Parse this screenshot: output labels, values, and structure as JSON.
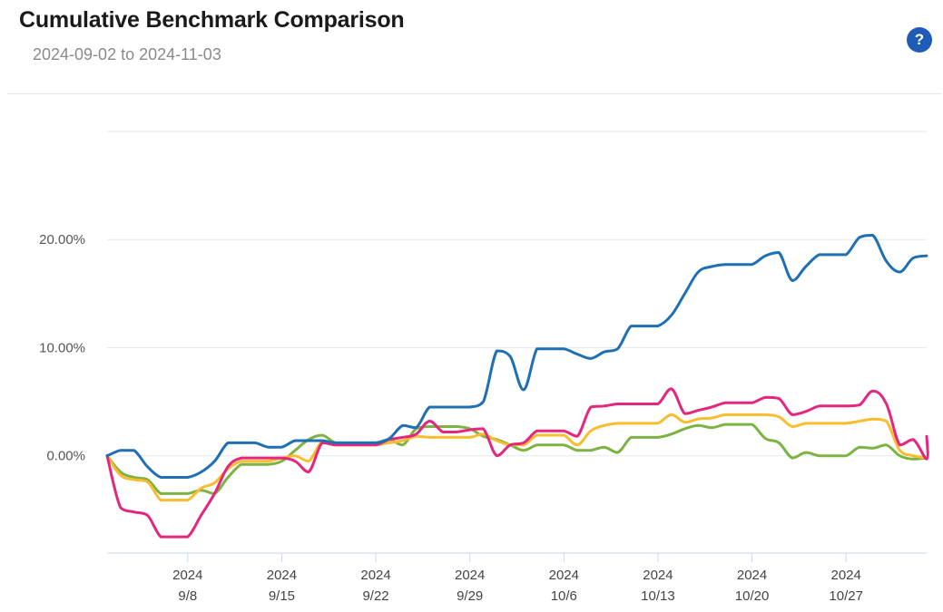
{
  "header": {
    "title": "Cumulative Benchmark Comparison",
    "subtitle": "2024-09-02 to 2024-11-03",
    "help_label": "?",
    "help_icon": "question-circle-icon"
  },
  "colors": {
    "blue": "#1f6fb4",
    "pink": "#e4267f",
    "yellow": "#f9bd2e",
    "green": "#7cb342",
    "grid": "#e6e9ed",
    "axis": "#c9d6ec"
  },
  "chart_data": {
    "type": "line",
    "title": "Cumulative Benchmark Comparison",
    "subtitle": "2024-09-02 to 2024-11-03",
    "xlabel": "",
    "ylabel": "",
    "x_range": [
      "2024-09-02",
      "2024-11-02"
    ],
    "ylim": [
      -9,
      30
    ],
    "y_ticks": [
      {
        "value": 0,
        "label": "0.00%"
      },
      {
        "value": 10,
        "label": "10.00%"
      },
      {
        "value": 20,
        "label": "20.00%"
      }
    ],
    "x_ticks": [
      {
        "date": "2024-09-08",
        "year": "2024",
        "label": "9/8"
      },
      {
        "date": "2024-09-15",
        "year": "2024",
        "label": "9/15"
      },
      {
        "date": "2024-09-22",
        "year": "2024",
        "label": "9/22"
      },
      {
        "date": "2024-09-29",
        "year": "2024",
        "label": "9/29"
      },
      {
        "date": "2024-10-06",
        "year": "2024",
        "label": "10/6"
      },
      {
        "date": "2024-10-13",
        "year": "2024",
        "label": "10/13"
      },
      {
        "date": "2024-10-20",
        "year": "2024",
        "label": "10/20"
      },
      {
        "date": "2024-10-27",
        "year": "2024",
        "label": "10/27"
      }
    ],
    "grid": true,
    "legend": "none",
    "series": [
      {
        "color": "#1f6fb4",
        "points": [
          [
            "2024-09-02",
            0.0
          ],
          [
            "2024-09-03",
            0.5
          ],
          [
            "2024-09-04",
            0.5
          ],
          [
            "2024-09-05",
            -1.0
          ],
          [
            "2024-09-06",
            -2.0
          ],
          [
            "2024-09-07",
            -2.0
          ],
          [
            "2024-09-08",
            -2.0
          ],
          [
            "2024-09-09",
            -1.5
          ],
          [
            "2024-09-10",
            -0.5
          ],
          [
            "2024-09-11",
            1.2
          ],
          [
            "2024-09-12",
            1.2
          ],
          [
            "2024-09-13",
            1.2
          ],
          [
            "2024-09-14",
            0.8
          ],
          [
            "2024-09-15",
            0.8
          ],
          [
            "2024-09-16",
            1.4
          ],
          [
            "2024-09-17",
            1.4
          ],
          [
            "2024-09-18",
            1.4
          ],
          [
            "2024-09-19",
            1.2
          ],
          [
            "2024-09-20",
            1.2
          ],
          [
            "2024-09-21",
            1.2
          ],
          [
            "2024-09-22",
            1.2
          ],
          [
            "2024-09-23",
            1.6
          ],
          [
            "2024-09-24",
            2.8
          ],
          [
            "2024-09-25",
            2.6
          ],
          [
            "2024-09-26",
            4.5
          ],
          [
            "2024-09-27",
            4.5
          ],
          [
            "2024-09-28",
            4.5
          ],
          [
            "2024-09-29",
            4.5
          ],
          [
            "2024-09-30",
            5.0
          ],
          [
            "2024-10-01",
            9.7
          ],
          [
            "2024-10-02",
            9.2
          ],
          [
            "2024-10-03",
            6.1
          ],
          [
            "2024-10-04",
            9.9
          ],
          [
            "2024-10-05",
            9.9
          ],
          [
            "2024-10-06",
            9.9
          ],
          [
            "2024-10-07",
            9.4
          ],
          [
            "2024-10-08",
            9.0
          ],
          [
            "2024-10-09",
            9.6
          ],
          [
            "2024-10-10",
            9.9
          ],
          [
            "2024-10-11",
            12.0
          ],
          [
            "2024-10-12",
            12.0
          ],
          [
            "2024-10-13",
            12.0
          ],
          [
            "2024-10-14",
            13.0
          ],
          [
            "2024-10-15",
            15.0
          ],
          [
            "2024-10-16",
            17.0
          ],
          [
            "2024-10-17",
            17.5
          ],
          [
            "2024-10-18",
            17.7
          ],
          [
            "2024-10-19",
            17.7
          ],
          [
            "2024-10-20",
            17.7
          ],
          [
            "2024-10-21",
            18.5
          ],
          [
            "2024-10-22",
            18.8
          ],
          [
            "2024-10-23",
            16.2
          ],
          [
            "2024-10-24",
            17.5
          ],
          [
            "2024-10-25",
            18.6
          ],
          [
            "2024-10-26",
            18.6
          ],
          [
            "2024-10-27",
            18.6
          ],
          [
            "2024-10-28",
            20.2
          ],
          [
            "2024-10-29",
            20.4
          ],
          [
            "2024-10-30",
            18.0
          ],
          [
            "2024-10-31",
            17.0
          ],
          [
            "2024-11-01",
            18.3
          ],
          [
            "2024-11-02",
            18.5
          ]
        ]
      },
      {
        "color": "#e4267f",
        "points": [
          [
            "2024-09-02",
            0.0
          ],
          [
            "2024-09-03",
            -4.8
          ],
          [
            "2024-09-04",
            -5.2
          ],
          [
            "2024-09-05",
            -5.5
          ],
          [
            "2024-09-06",
            -7.5
          ],
          [
            "2024-09-07",
            -7.5
          ],
          [
            "2024-09-08",
            -7.5
          ],
          [
            "2024-09-09",
            -5.5
          ],
          [
            "2024-09-10",
            -3.5
          ],
          [
            "2024-09-11",
            -1.0
          ],
          [
            "2024-09-12",
            -0.2
          ],
          [
            "2024-09-13",
            -0.2
          ],
          [
            "2024-09-14",
            -0.2
          ],
          [
            "2024-09-15",
            -0.2
          ],
          [
            "2024-09-16",
            -0.5
          ],
          [
            "2024-09-17",
            -1.5
          ],
          [
            "2024-09-18",
            1.2
          ],
          [
            "2024-09-19",
            1.0
          ],
          [
            "2024-09-20",
            1.0
          ],
          [
            "2024-09-21",
            1.0
          ],
          [
            "2024-09-22",
            1.0
          ],
          [
            "2024-09-23",
            1.5
          ],
          [
            "2024-09-24",
            1.7
          ],
          [
            "2024-09-25",
            2.0
          ],
          [
            "2024-09-26",
            3.2
          ],
          [
            "2024-09-27",
            2.2
          ],
          [
            "2024-09-28",
            2.2
          ],
          [
            "2024-09-29",
            2.4
          ],
          [
            "2024-09-30",
            2.5
          ],
          [
            "2024-10-01",
            0.0
          ],
          [
            "2024-10-02",
            1.0
          ],
          [
            "2024-10-03",
            1.2
          ],
          [
            "2024-10-04",
            2.3
          ],
          [
            "2024-10-05",
            2.3
          ],
          [
            "2024-10-06",
            2.3
          ],
          [
            "2024-10-07",
            1.8
          ],
          [
            "2024-10-08",
            4.5
          ],
          [
            "2024-10-09",
            4.6
          ],
          [
            "2024-10-10",
            4.8
          ],
          [
            "2024-10-11",
            4.8
          ],
          [
            "2024-10-12",
            4.8
          ],
          [
            "2024-10-13",
            4.8
          ],
          [
            "2024-10-14",
            6.2
          ],
          [
            "2024-10-15",
            3.9
          ],
          [
            "2024-10-16",
            4.2
          ],
          [
            "2024-10-17",
            4.5
          ],
          [
            "2024-10-18",
            4.9
          ],
          [
            "2024-10-19",
            4.9
          ],
          [
            "2024-10-20",
            4.9
          ],
          [
            "2024-10-21",
            5.4
          ],
          [
            "2024-10-22",
            5.3
          ],
          [
            "2024-10-23",
            3.8
          ],
          [
            "2024-10-24",
            4.1
          ],
          [
            "2024-10-25",
            4.6
          ],
          [
            "2024-10-26",
            4.6
          ],
          [
            "2024-10-27",
            4.6
          ],
          [
            "2024-10-28",
            4.7
          ],
          [
            "2024-10-29",
            6.0
          ],
          [
            "2024-10-30",
            4.8
          ],
          [
            "2024-10-31",
            1.0
          ],
          [
            "2024-11-01",
            1.5
          ],
          [
            "2024-11-02",
            -0.3
          ],
          [
            "2024-11-03",
            1.8
          ]
        ]
      },
      {
        "color": "#f9bd2e",
        "points": [
          [
            "2024-09-02",
            0.0
          ],
          [
            "2024-09-03",
            -1.8
          ],
          [
            "2024-09-04",
            -2.2
          ],
          [
            "2024-09-05",
            -2.4
          ],
          [
            "2024-09-06",
            -4.1
          ],
          [
            "2024-09-07",
            -4.1
          ],
          [
            "2024-09-08",
            -4.1
          ],
          [
            "2024-09-09",
            -3.0
          ],
          [
            "2024-09-10",
            -2.5
          ],
          [
            "2024-09-11",
            -1.2
          ],
          [
            "2024-09-12",
            -0.5
          ],
          [
            "2024-09-13",
            -0.5
          ],
          [
            "2024-09-14",
            -0.5
          ],
          [
            "2024-09-15",
            -0.2
          ],
          [
            "2024-09-16",
            0.0
          ],
          [
            "2024-09-17",
            -0.5
          ],
          [
            "2024-09-18",
            1.3
          ],
          [
            "2024-09-19",
            1.0
          ],
          [
            "2024-09-20",
            1.0
          ],
          [
            "2024-09-21",
            1.0
          ],
          [
            "2024-09-22",
            1.0
          ],
          [
            "2024-09-23",
            1.2
          ],
          [
            "2024-09-24",
            1.4
          ],
          [
            "2024-09-25",
            1.8
          ],
          [
            "2024-09-26",
            1.7
          ],
          [
            "2024-09-27",
            1.7
          ],
          [
            "2024-09-28",
            1.7
          ],
          [
            "2024-09-29",
            1.7
          ],
          [
            "2024-09-30",
            2.0
          ],
          [
            "2024-10-01",
            1.4
          ],
          [
            "2024-10-02",
            1.0
          ],
          [
            "2024-10-03",
            1.0
          ],
          [
            "2024-10-04",
            1.9
          ],
          [
            "2024-10-05",
            1.9
          ],
          [
            "2024-10-06",
            1.9
          ],
          [
            "2024-10-07",
            1.0
          ],
          [
            "2024-10-08",
            2.3
          ],
          [
            "2024-10-09",
            2.8
          ],
          [
            "2024-10-10",
            3.0
          ],
          [
            "2024-10-11",
            3.0
          ],
          [
            "2024-10-12",
            3.0
          ],
          [
            "2024-10-13",
            3.0
          ],
          [
            "2024-10-14",
            3.8
          ],
          [
            "2024-10-15",
            3.1
          ],
          [
            "2024-10-16",
            3.4
          ],
          [
            "2024-10-17",
            3.5
          ],
          [
            "2024-10-18",
            3.8
          ],
          [
            "2024-10-19",
            3.8
          ],
          [
            "2024-10-20",
            3.8
          ],
          [
            "2024-10-21",
            3.8
          ],
          [
            "2024-10-22",
            3.6
          ],
          [
            "2024-10-23",
            2.7
          ],
          [
            "2024-10-24",
            3.0
          ],
          [
            "2024-10-25",
            3.0
          ],
          [
            "2024-10-26",
            3.0
          ],
          [
            "2024-10-27",
            3.0
          ],
          [
            "2024-10-28",
            3.2
          ],
          [
            "2024-10-29",
            3.4
          ],
          [
            "2024-10-30",
            3.2
          ],
          [
            "2024-10-31",
            0.5
          ],
          [
            "2024-11-01",
            0.0
          ],
          [
            "2024-11-02",
            -0.2
          ]
        ]
      },
      {
        "color": "#7cb342",
        "points": [
          [
            "2024-09-02",
            0.0
          ],
          [
            "2024-09-03",
            -1.5
          ],
          [
            "2024-09-04",
            -2.0
          ],
          [
            "2024-09-05",
            -2.2
          ],
          [
            "2024-09-06",
            -3.5
          ],
          [
            "2024-09-07",
            -3.5
          ],
          [
            "2024-09-08",
            -3.5
          ],
          [
            "2024-09-09",
            -3.2
          ],
          [
            "2024-09-10",
            -3.5
          ],
          [
            "2024-09-11",
            -2.0
          ],
          [
            "2024-09-12",
            -0.8
          ],
          [
            "2024-09-13",
            -0.8
          ],
          [
            "2024-09-14",
            -0.8
          ],
          [
            "2024-09-15",
            -0.5
          ],
          [
            "2024-09-16",
            0.5
          ],
          [
            "2024-09-17",
            1.5
          ],
          [
            "2024-09-18",
            1.9
          ],
          [
            "2024-09-19",
            1.2
          ],
          [
            "2024-09-20",
            1.2
          ],
          [
            "2024-09-21",
            1.2
          ],
          [
            "2024-09-22",
            1.2
          ],
          [
            "2024-09-23",
            1.5
          ],
          [
            "2024-09-24",
            1.0
          ],
          [
            "2024-09-25",
            2.5
          ],
          [
            "2024-09-26",
            2.7
          ],
          [
            "2024-09-27",
            2.7
          ],
          [
            "2024-09-28",
            2.7
          ],
          [
            "2024-09-29",
            2.5
          ],
          [
            "2024-09-30",
            1.8
          ],
          [
            "2024-10-01",
            1.5
          ],
          [
            "2024-10-02",
            1.0
          ],
          [
            "2024-10-03",
            0.5
          ],
          [
            "2024-10-04",
            1.0
          ],
          [
            "2024-10-05",
            1.0
          ],
          [
            "2024-10-06",
            1.0
          ],
          [
            "2024-10-07",
            0.5
          ],
          [
            "2024-10-08",
            0.5
          ],
          [
            "2024-10-09",
            0.8
          ],
          [
            "2024-10-10",
            0.3
          ],
          [
            "2024-10-11",
            1.7
          ],
          [
            "2024-10-12",
            1.7
          ],
          [
            "2024-10-13",
            1.7
          ],
          [
            "2024-10-14",
            2.0
          ],
          [
            "2024-10-15",
            2.5
          ],
          [
            "2024-10-16",
            2.8
          ],
          [
            "2024-10-17",
            2.6
          ],
          [
            "2024-10-18",
            2.9
          ],
          [
            "2024-10-19",
            2.9
          ],
          [
            "2024-10-20",
            2.9
          ],
          [
            "2024-10-21",
            1.6
          ],
          [
            "2024-10-22",
            1.2
          ],
          [
            "2024-10-23",
            -0.2
          ],
          [
            "2024-10-24",
            0.3
          ],
          [
            "2024-10-25",
            0.0
          ],
          [
            "2024-10-26",
            0.0
          ],
          [
            "2024-10-27",
            0.0
          ],
          [
            "2024-10-28",
            0.8
          ],
          [
            "2024-10-29",
            0.7
          ],
          [
            "2024-10-30",
            1.0
          ],
          [
            "2024-10-31",
            0.0
          ],
          [
            "2024-11-01",
            -0.3
          ],
          [
            "2024-11-02",
            -0.2
          ]
        ]
      }
    ]
  }
}
